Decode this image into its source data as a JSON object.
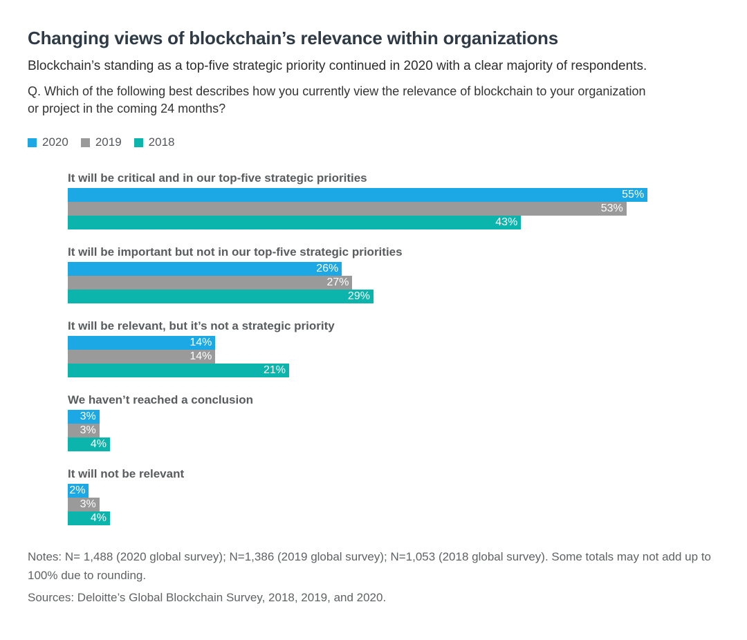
{
  "header": {
    "title": "Changing views of blockchain’s relevance within organizations",
    "subtitle": "Blockchain’s standing as a top-five strategic priority continued in 2020 with a clear majority of respondents.",
    "question": "Q. Which of the following best describes how you currently view the relevance of blockchain to your organization or project in the coming 24 months?"
  },
  "legend": [
    {
      "label": "2020",
      "color": "#1ba8e5"
    },
    {
      "label": "2019",
      "color": "#9a9a9a"
    },
    {
      "label": "2018",
      "color": "#0cb5ab"
    }
  ],
  "chart_data": {
    "type": "bar",
    "orientation": "horizontal",
    "categories": [
      "It will be critical and in our top-five strategic priorities",
      "It will be important but not in our top-five strategic priorities",
      "It will be relevant, but it’s not a strategic priority",
      "We haven’t reached a conclusion",
      "It will not be relevant"
    ],
    "series": [
      {
        "name": "2020",
        "color": "#1ba8e5",
        "values": [
          55,
          26,
          14,
          3,
          2
        ]
      },
      {
        "name": "2019",
        "color": "#9a9a9a",
        "values": [
          53,
          27,
          14,
          3,
          3
        ]
      },
      {
        "name": "2018",
        "color": "#0cb5ab",
        "values": [
          43,
          29,
          21,
          4,
          4
        ]
      }
    ],
    "value_suffix": "%",
    "xlim": [
      0,
      100
    ],
    "grid": false,
    "axes_visible": false,
    "value_labels": "inside-right",
    "legend_position": "top-left"
  },
  "footer": {
    "notes": "Notes: N= 1,488 (2020 global survey); N=1,386 (2019 global survey); N=1,053 (2018 global survey). Some totals may not add up to 100% due to rounding.",
    "sources": "Sources: Deloitte’s Global Blockchain Survey, 2018, 2019, and 2020."
  }
}
